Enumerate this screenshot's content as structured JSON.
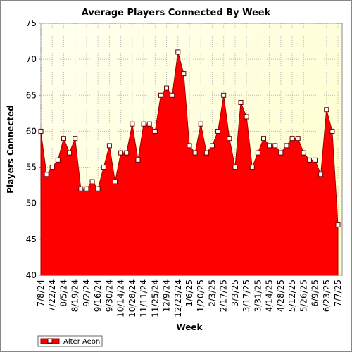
{
  "chart_data": {
    "type": "area",
    "title": "Average Players Connected By Week",
    "xlabel": "Week",
    "ylabel": "Players Connected",
    "categories": [
      "7/8/24",
      null,
      "7/22/24",
      null,
      "8/5/24",
      null,
      "8/19/24",
      null,
      "9/2/24",
      null,
      "9/16/24",
      null,
      "9/30/24",
      null,
      "10/14/24",
      null,
      "10/28/24",
      null,
      "11/11/24",
      null,
      "11/25/24",
      null,
      "12/9/24",
      null,
      "12/23/24",
      null,
      "1/6/25",
      null,
      "1/20/25",
      null,
      "2/3/25",
      null,
      "2/17/25",
      null,
      "3/3/25",
      null,
      "3/17/25",
      null,
      "3/31/25",
      null,
      "4/14/25",
      null,
      "4/28/25",
      null,
      "5/12/25",
      null,
      "5/26/25",
      null,
      "6/9/25",
      null,
      "6/23/25",
      null,
      "7/7/25"
    ],
    "series": [
      {
        "name": "Alter Aeon",
        "color": "#ff0000",
        "values": [
          60,
          54,
          55,
          56,
          59,
          57,
          59,
          52,
          52,
          53,
          52,
          55,
          58,
          53,
          57,
          57,
          61,
          56,
          61,
          61,
          60,
          65,
          66,
          65,
          71,
          68,
          58,
          57,
          61,
          57,
          58,
          60,
          65,
          59,
          55,
          64,
          62,
          55,
          57,
          59,
          58,
          58,
          57,
          58,
          59,
          59,
          57,
          56,
          56,
          54,
          63,
          60,
          47
        ]
      }
    ],
    "ylim": [
      40,
      75
    ],
    "yticks": [
      40,
      45,
      50,
      55,
      60,
      65,
      70,
      75
    ],
    "grid": true,
    "legend": "bottom-left"
  }
}
